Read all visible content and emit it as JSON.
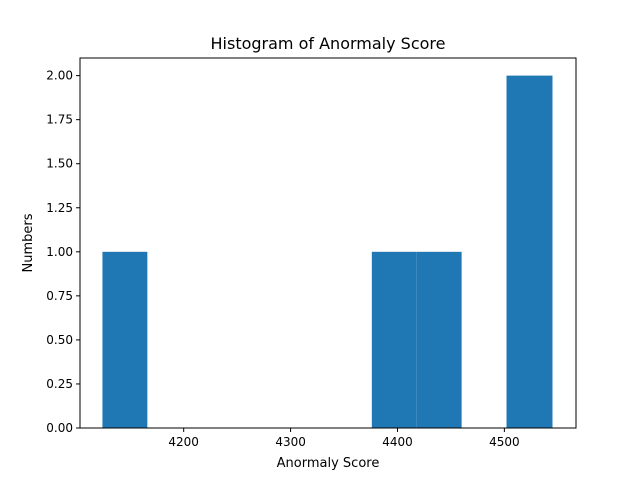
{
  "chart_data": {
    "type": "bar",
    "title": "Histogram of Anormaly Score",
    "xlabel": "Anormaly Score",
    "ylabel": "Numbers",
    "xlim": [
      4103,
      4567
    ],
    "ylim": [
      0,
      2.1
    ],
    "x_ticks": [
      4200,
      4300,
      4400,
      4500
    ],
    "y_ticks": [
      "0.00",
      "0.25",
      "0.50",
      "0.75",
      "1.00",
      "1.25",
      "1.50",
      "1.75",
      "2.00"
    ],
    "bin_edges": [
      4124,
      4166,
      4208,
      4250,
      4292,
      4334,
      4376,
      4418,
      4460,
      4502,
      4545
    ],
    "values": [
      1,
      0,
      0,
      0,
      0,
      0,
      1,
      1,
      0,
      2
    ],
    "bar_color": "#1f77b4",
    "grid": false,
    "legend": false
  }
}
